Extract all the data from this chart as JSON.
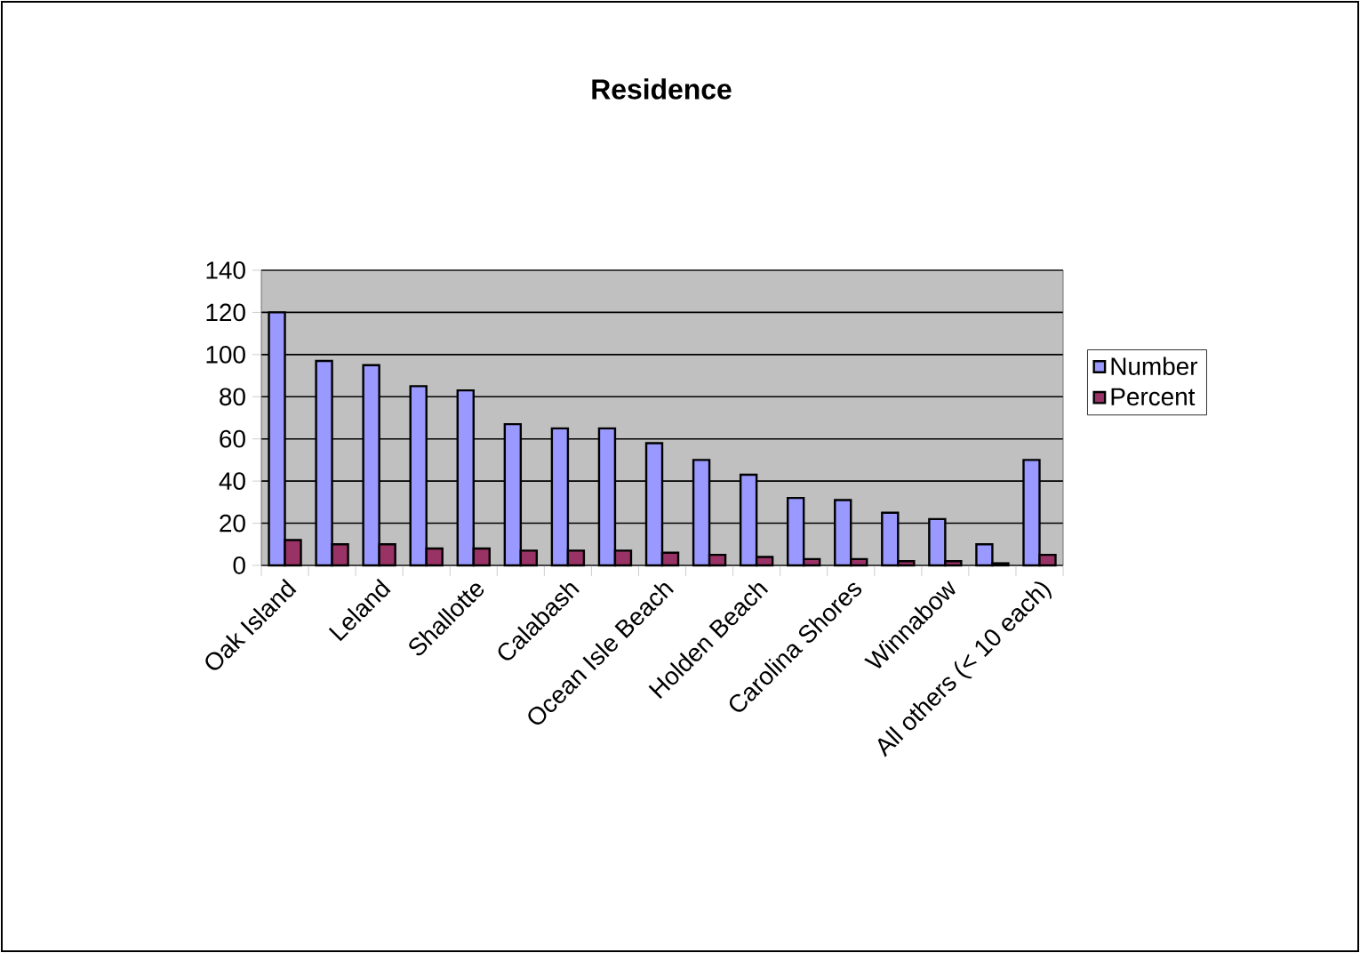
{
  "chart_data": {
    "type": "bar",
    "title": "Residence",
    "categories": [
      "Oak Island",
      null,
      "Leland",
      null,
      "Shallotte",
      null,
      "Calabash",
      null,
      "Ocean Isle Beach",
      null,
      "Holden Beach",
      null,
      "Carolina Shores",
      null,
      "Winnabow",
      null,
      "All others (< 10 each)"
    ],
    "series": [
      {
        "name": "Number",
        "color": "#9999ff",
        "values": [
          120,
          97,
          95,
          85,
          83,
          67,
          65,
          65,
          58,
          50,
          43,
          32,
          31,
          25,
          22,
          10,
          50
        ]
      },
      {
        "name": "Percent",
        "color": "#993366",
        "values": [
          12,
          10,
          10,
          8,
          8,
          7,
          7,
          7,
          6,
          5,
          4,
          3,
          3,
          2,
          2,
          1,
          5
        ]
      }
    ],
    "ylim": [
      0,
      140
    ],
    "yticks": [
      0,
      20,
      40,
      60,
      80,
      100,
      120,
      140
    ],
    "grid": "y",
    "legend": "right"
  }
}
